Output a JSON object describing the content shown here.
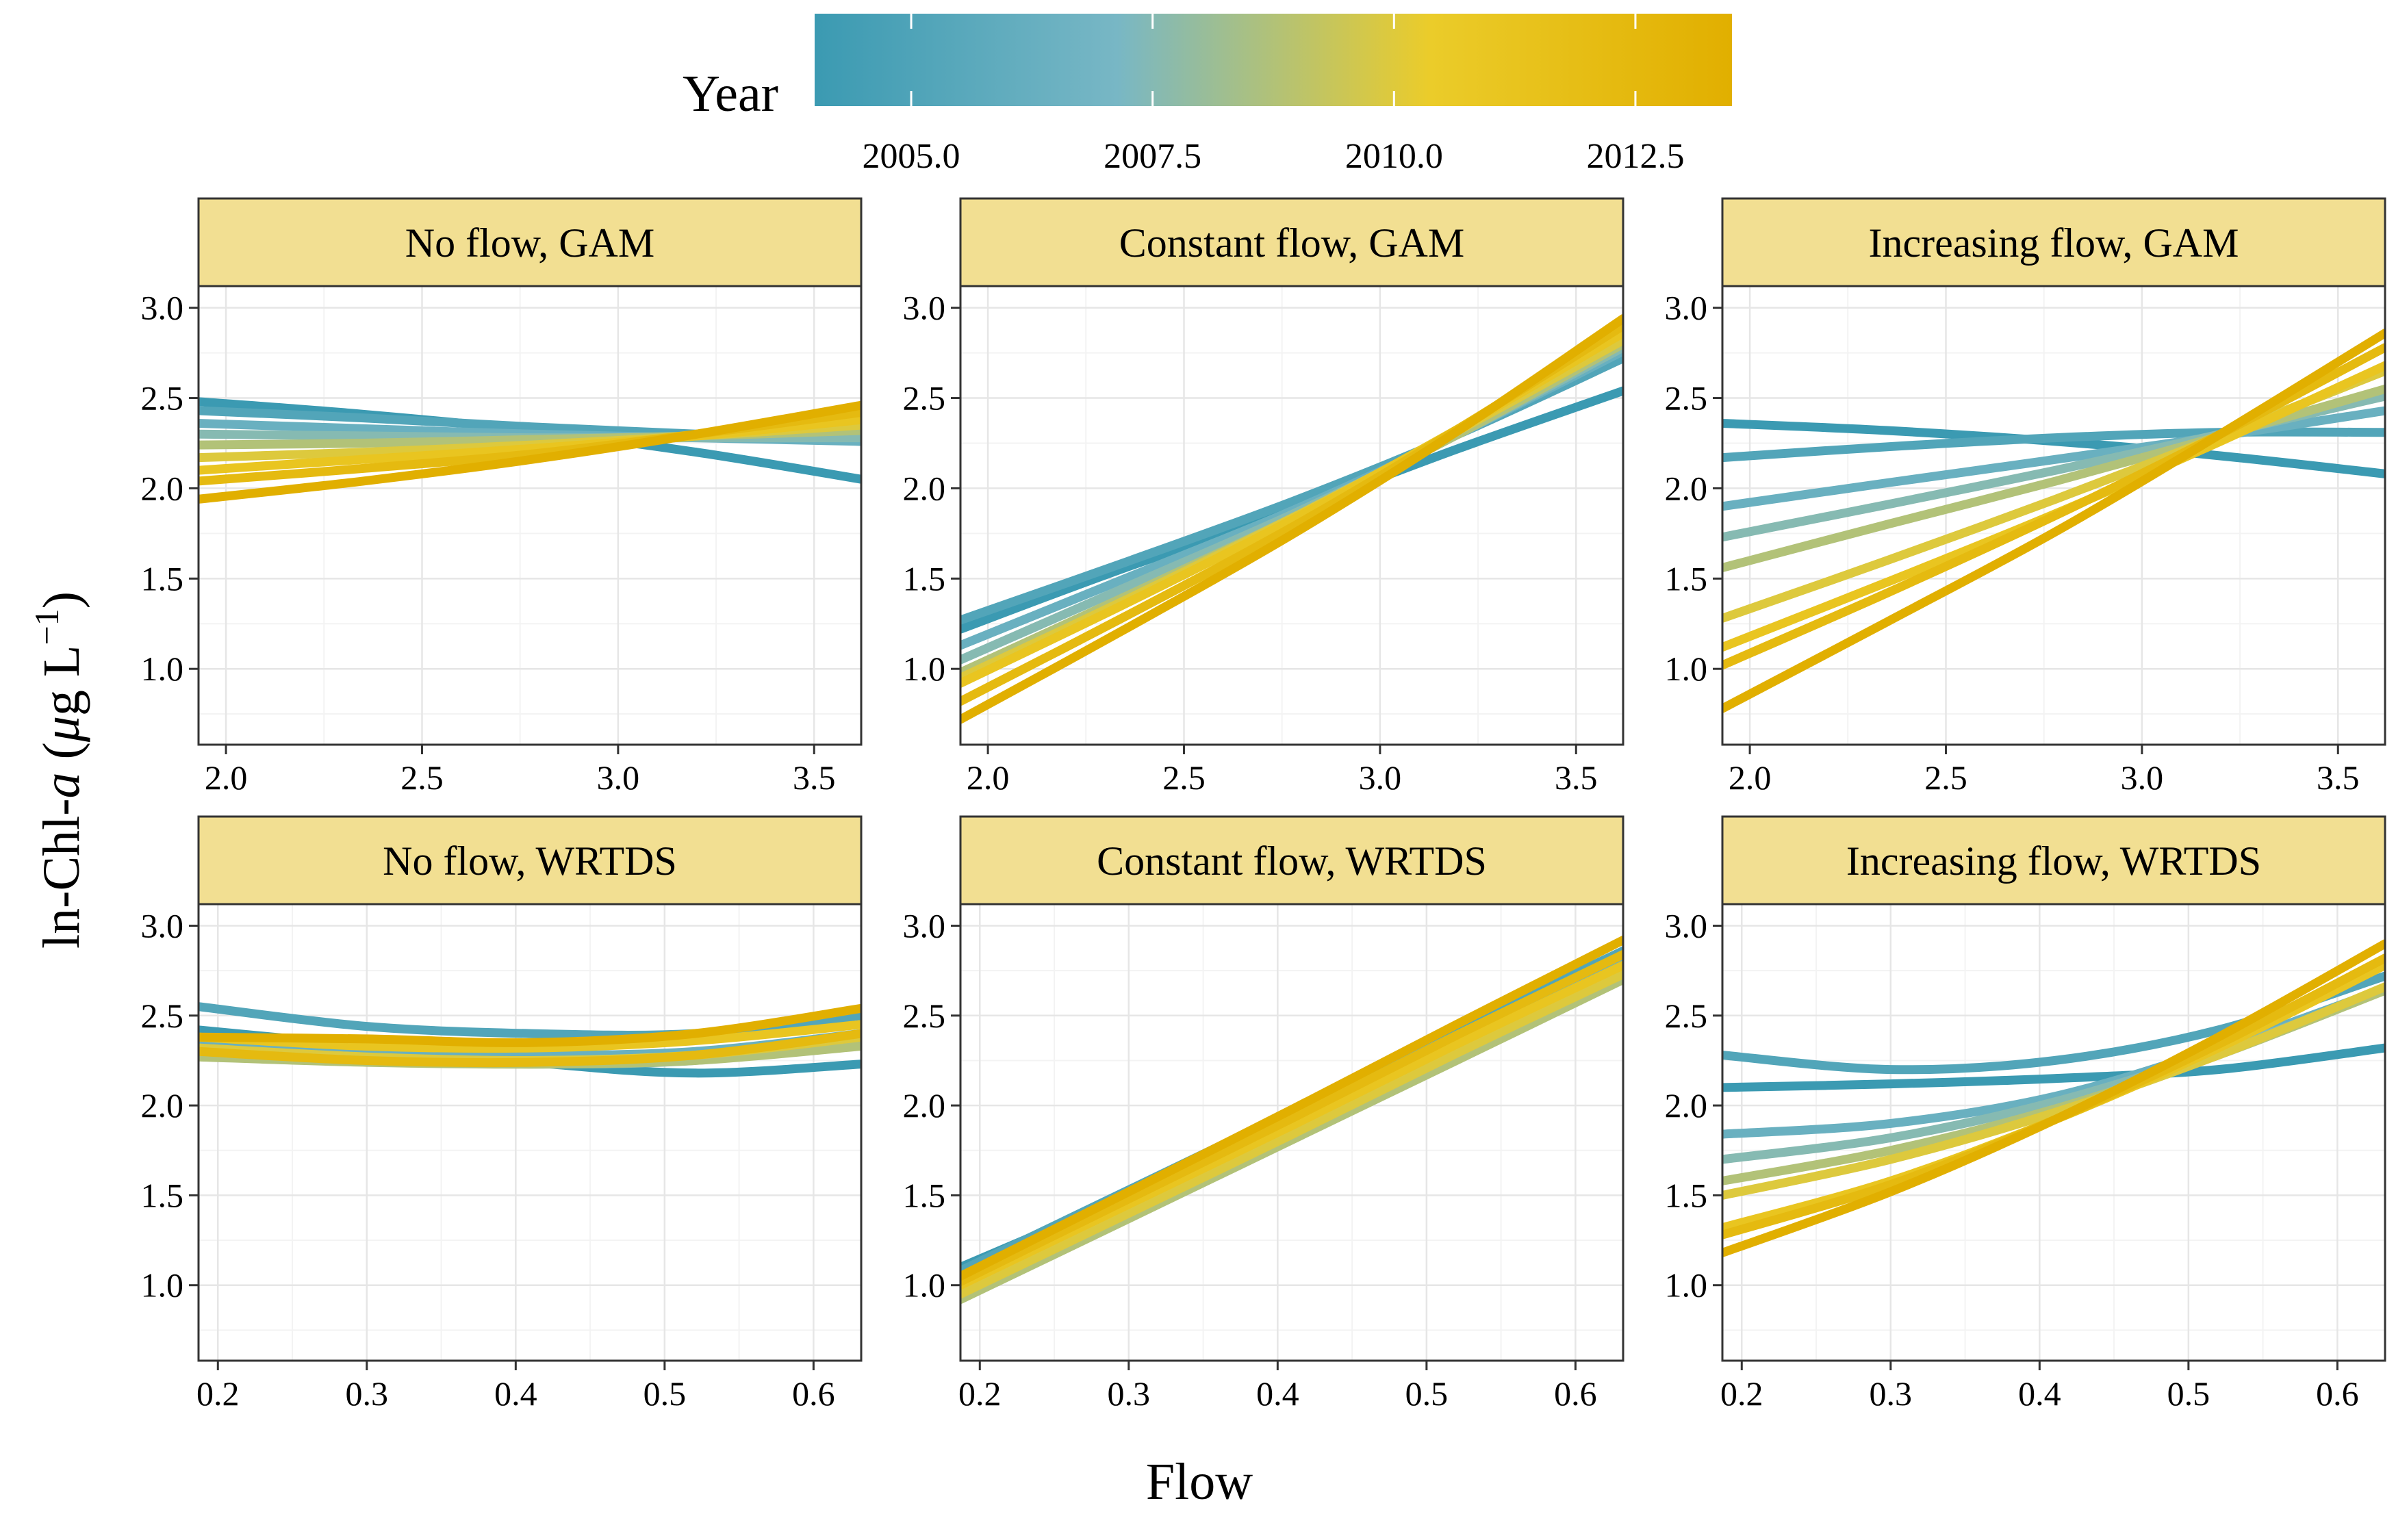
{
  "figure": {
    "y_title_prefix": "ln-Chl-",
    "y_title_italic": "a",
    "y_title_open": " (",
    "y_title_mu": "μ",
    "y_title_unit": "g L",
    "y_title_sup": "−1",
    "y_title_close": ")",
    "x_title": "Flow"
  },
  "legend": {
    "title": "Year",
    "tick_labels": [
      "2005.0",
      "2007.5",
      "2010.0",
      "2012.5"
    ],
    "tick_values": [
      2005.0,
      2007.5,
      2010.0,
      2012.5
    ],
    "range": [
      2004.0,
      2013.5
    ],
    "colors": [
      "#3B9AB2",
      "#78B7C5",
      "#EBCC2A",
      "#E1AF00"
    ]
  },
  "colors": {
    "strip_fill": "#F2DF92",
    "panel_border": "#333333",
    "grid_major": "#E6E6E6",
    "grid_minor": "#F3F3F3"
  },
  "chart_data": [
    {
      "type": "line",
      "panel": "No flow, GAM",
      "title": "No flow, GAM",
      "xlim": [
        1.93,
        3.62
      ],
      "ylim": [
        0.58,
        3.12
      ],
      "x_ticks": [
        "2.0",
        "2.5",
        "3.0",
        "3.5"
      ],
      "y_ticks": [
        "1.0",
        "1.5",
        "2.0",
        "2.5",
        "3.0"
      ],
      "x": [
        1.93,
        2.35,
        2.78,
        3.2,
        3.62
      ],
      "series": [
        {
          "year": 2005,
          "values": [
            2.48,
            2.41,
            2.32,
            2.2,
            2.05
          ]
        },
        {
          "year": 2006,
          "values": [
            2.43,
            2.39,
            2.34,
            2.3,
            2.26
          ]
        },
        {
          "year": 2007,
          "values": [
            2.36,
            2.33,
            2.3,
            2.28,
            2.26
          ]
        },
        {
          "year": 2008,
          "values": [
            2.3,
            2.29,
            2.28,
            2.28,
            2.28
          ]
        },
        {
          "year": 2009,
          "values": [
            2.24,
            2.25,
            2.27,
            2.29,
            2.32
          ]
        },
        {
          "year": 2010,
          "values": [
            2.17,
            2.2,
            2.24,
            2.29,
            2.35
          ]
        },
        {
          "year": 2011,
          "values": [
            2.1,
            2.16,
            2.22,
            2.29,
            2.38
          ]
        },
        {
          "year": 2012,
          "values": [
            2.04,
            2.11,
            2.19,
            2.3,
            2.42
          ]
        },
        {
          "year": 2013,
          "values": [
            1.94,
            2.04,
            2.16,
            2.3,
            2.46
          ]
        }
      ]
    },
    {
      "type": "line",
      "panel": "Constant flow, GAM",
      "title": "Constant flow, GAM",
      "xlim": [
        1.93,
        3.62
      ],
      "ylim": [
        0.58,
        3.12
      ],
      "x_ticks": [
        "2.0",
        "2.5",
        "3.0",
        "3.5"
      ],
      "y_ticks": [
        "1.0",
        "1.5",
        "2.0",
        "2.5",
        "3.0"
      ],
      "x": [
        1.93,
        2.35,
        2.78,
        3.2,
        3.62
      ],
      "series": [
        {
          "year": 2005,
          "values": [
            1.22,
            1.56,
            1.88,
            2.22,
            2.54
          ]
        },
        {
          "year": 2006,
          "values": [
            1.27,
            1.59,
            1.93,
            2.3,
            2.72
          ]
        },
        {
          "year": 2007,
          "values": [
            1.13,
            1.5,
            1.88,
            2.3,
            2.76
          ]
        },
        {
          "year": 2008,
          "values": [
            1.05,
            1.45,
            1.86,
            2.3,
            2.78
          ]
        },
        {
          "year": 2009,
          "values": [
            0.98,
            1.4,
            1.84,
            2.3,
            2.8
          ]
        },
        {
          "year": 2010,
          "values": [
            0.95,
            1.38,
            1.84,
            2.32,
            2.82
          ]
        },
        {
          "year": 2011,
          "values": [
            0.92,
            1.36,
            1.83,
            2.33,
            2.86
          ]
        },
        {
          "year": 2012,
          "values": [
            0.82,
            1.29,
            1.79,
            2.33,
            2.9
          ]
        },
        {
          "year": 2013,
          "values": [
            0.72,
            1.22,
            1.75,
            2.32,
            2.94
          ]
        }
      ]
    },
    {
      "type": "line",
      "panel": "Increasing flow, GAM",
      "title": "Increasing flow, GAM",
      "xlim": [
        1.93,
        3.62
      ],
      "ylim": [
        0.58,
        3.12
      ],
      "x_ticks": [
        "2.0",
        "2.5",
        "3.0",
        "3.5"
      ],
      "y_ticks": [
        "1.0",
        "1.5",
        "2.0",
        "2.5",
        "3.0"
      ],
      "x": [
        1.93,
        2.35,
        2.78,
        3.2,
        3.62
      ],
      "series": [
        {
          "year": 2005,
          "values": [
            2.36,
            2.32,
            2.26,
            2.18,
            2.08
          ]
        },
        {
          "year": 2006,
          "values": [
            2.17,
            2.23,
            2.28,
            2.31,
            2.31
          ]
        },
        {
          "year": 2007,
          "values": [
            1.9,
            2.03,
            2.16,
            2.29,
            2.43
          ]
        },
        {
          "year": 2008,
          "values": [
            1.73,
            1.91,
            2.1,
            2.3,
            2.51
          ]
        },
        {
          "year": 2009,
          "values": [
            1.56,
            1.8,
            2.04,
            2.29,
            2.55
          ]
        },
        {
          "year": 2010,
          "values": [
            1.28,
            1.6,
            1.94,
            2.29,
            2.65
          ]
        },
        {
          "year": 2011,
          "values": [
            1.12,
            1.48,
            1.86,
            2.26,
            2.68
          ]
        },
        {
          "year": 2012,
          "values": [
            1.02,
            1.42,
            1.85,
            2.3,
            2.78
          ]
        },
        {
          "year": 2013,
          "values": [
            0.78,
            1.26,
            1.76,
            2.3,
            2.86
          ]
        }
      ]
    },
    {
      "type": "line",
      "panel": "No flow, WRTDS",
      "title": "No flow, WRTDS",
      "xlim": [
        0.187,
        0.632
      ],
      "ylim": [
        0.58,
        3.12
      ],
      "x_ticks": [
        "0.2",
        "0.3",
        "0.4",
        "0.5",
        "0.6"
      ],
      "y_ticks": [
        "1.0",
        "1.5",
        "2.0",
        "2.5",
        "3.0"
      ],
      "x": [
        0.187,
        0.3,
        0.41,
        0.52,
        0.632
      ],
      "series": [
        {
          "year": 2005,
          "values": [
            2.42,
            2.33,
            2.24,
            2.18,
            2.23
          ]
        },
        {
          "year": 2006,
          "values": [
            2.55,
            2.44,
            2.4,
            2.4,
            2.5
          ]
        },
        {
          "year": 2007,
          "values": [
            2.35,
            2.3,
            2.28,
            2.3,
            2.4
          ]
        },
        {
          "year": 2008,
          "values": [
            2.3,
            2.25,
            2.23,
            2.25,
            2.35
          ]
        },
        {
          "year": 2009,
          "values": [
            2.27,
            2.24,
            2.23,
            2.25,
            2.33
          ]
        },
        {
          "year": 2010,
          "values": [
            2.32,
            2.27,
            2.25,
            2.28,
            2.38
          ]
        },
        {
          "year": 2011,
          "values": [
            2.38,
            2.33,
            2.32,
            2.36,
            2.45
          ]
        },
        {
          "year": 2012,
          "values": [
            2.3,
            2.25,
            2.24,
            2.28,
            2.4
          ]
        },
        {
          "year": 2013,
          "values": [
            2.38,
            2.37,
            2.35,
            2.4,
            2.54
          ]
        }
      ]
    },
    {
      "type": "line",
      "panel": "Constant flow, WRTDS",
      "title": "Constant flow, WRTDS",
      "xlim": [
        0.187,
        0.632
      ],
      "ylim": [
        0.58,
        3.12
      ],
      "x_ticks": [
        "0.2",
        "0.3",
        "0.4",
        "0.5",
        "0.6"
      ],
      "y_ticks": [
        "1.0",
        "1.5",
        "2.0",
        "2.5",
        "3.0"
      ],
      "x": [
        0.187,
        0.3,
        0.41,
        0.52,
        0.632
      ],
      "series": [
        {
          "year": 2005,
          "values": [
            1.1,
            1.5,
            1.9,
            2.3,
            2.7
          ]
        },
        {
          "year": 2006,
          "values": [
            1.08,
            1.53,
            1.97,
            2.42,
            2.86
          ]
        },
        {
          "year": 2007,
          "values": [
            1.05,
            1.5,
            1.94,
            2.39,
            2.83
          ]
        },
        {
          "year": 2008,
          "values": [
            0.98,
            1.43,
            1.87,
            2.32,
            2.76
          ]
        },
        {
          "year": 2009,
          "values": [
            0.92,
            1.37,
            1.81,
            2.25,
            2.7
          ]
        },
        {
          "year": 2010,
          "values": [
            0.95,
            1.4,
            1.84,
            2.29,
            2.73
          ]
        },
        {
          "year": 2011,
          "values": [
            1.0,
            1.45,
            1.89,
            2.34,
            2.78
          ]
        },
        {
          "year": 2012,
          "values": [
            1.02,
            1.48,
            1.93,
            2.39,
            2.84
          ]
        },
        {
          "year": 2013,
          "values": [
            1.05,
            1.52,
            1.98,
            2.45,
            2.92
          ]
        }
      ]
    },
    {
      "type": "line",
      "panel": "Increasing flow, WRTDS",
      "title": "Increasing flow, WRTDS",
      "xlim": [
        0.187,
        0.632
      ],
      "ylim": [
        0.58,
        3.12
      ],
      "x_ticks": [
        "0.2",
        "0.3",
        "0.4",
        "0.5",
        "0.6"
      ],
      "y_ticks": [
        "1.0",
        "1.5",
        "2.0",
        "2.5",
        "3.0"
      ],
      "x": [
        0.187,
        0.3,
        0.41,
        0.52,
        0.632
      ],
      "series": [
        {
          "year": 2005,
          "values": [
            2.1,
            2.12,
            2.15,
            2.2,
            2.32
          ]
        },
        {
          "year": 2006,
          "values": [
            2.28,
            2.2,
            2.25,
            2.42,
            2.72
          ]
        },
        {
          "year": 2007,
          "values": [
            1.84,
            1.9,
            2.05,
            2.32,
            2.65
          ]
        },
        {
          "year": 2008,
          "values": [
            1.7,
            1.82,
            2.02,
            2.3,
            2.64
          ]
        },
        {
          "year": 2009,
          "values": [
            1.58,
            1.75,
            1.98,
            2.28,
            2.64
          ]
        },
        {
          "year": 2010,
          "values": [
            1.5,
            1.7,
            1.96,
            2.28,
            2.66
          ]
        },
        {
          "year": 2011,
          "values": [
            1.32,
            1.58,
            1.92,
            2.32,
            2.78
          ]
        },
        {
          "year": 2012,
          "values": [
            1.28,
            1.56,
            1.92,
            2.34,
            2.82
          ]
        },
        {
          "year": 2013,
          "values": [
            1.18,
            1.52,
            1.92,
            2.38,
            2.9
          ]
        }
      ]
    }
  ]
}
